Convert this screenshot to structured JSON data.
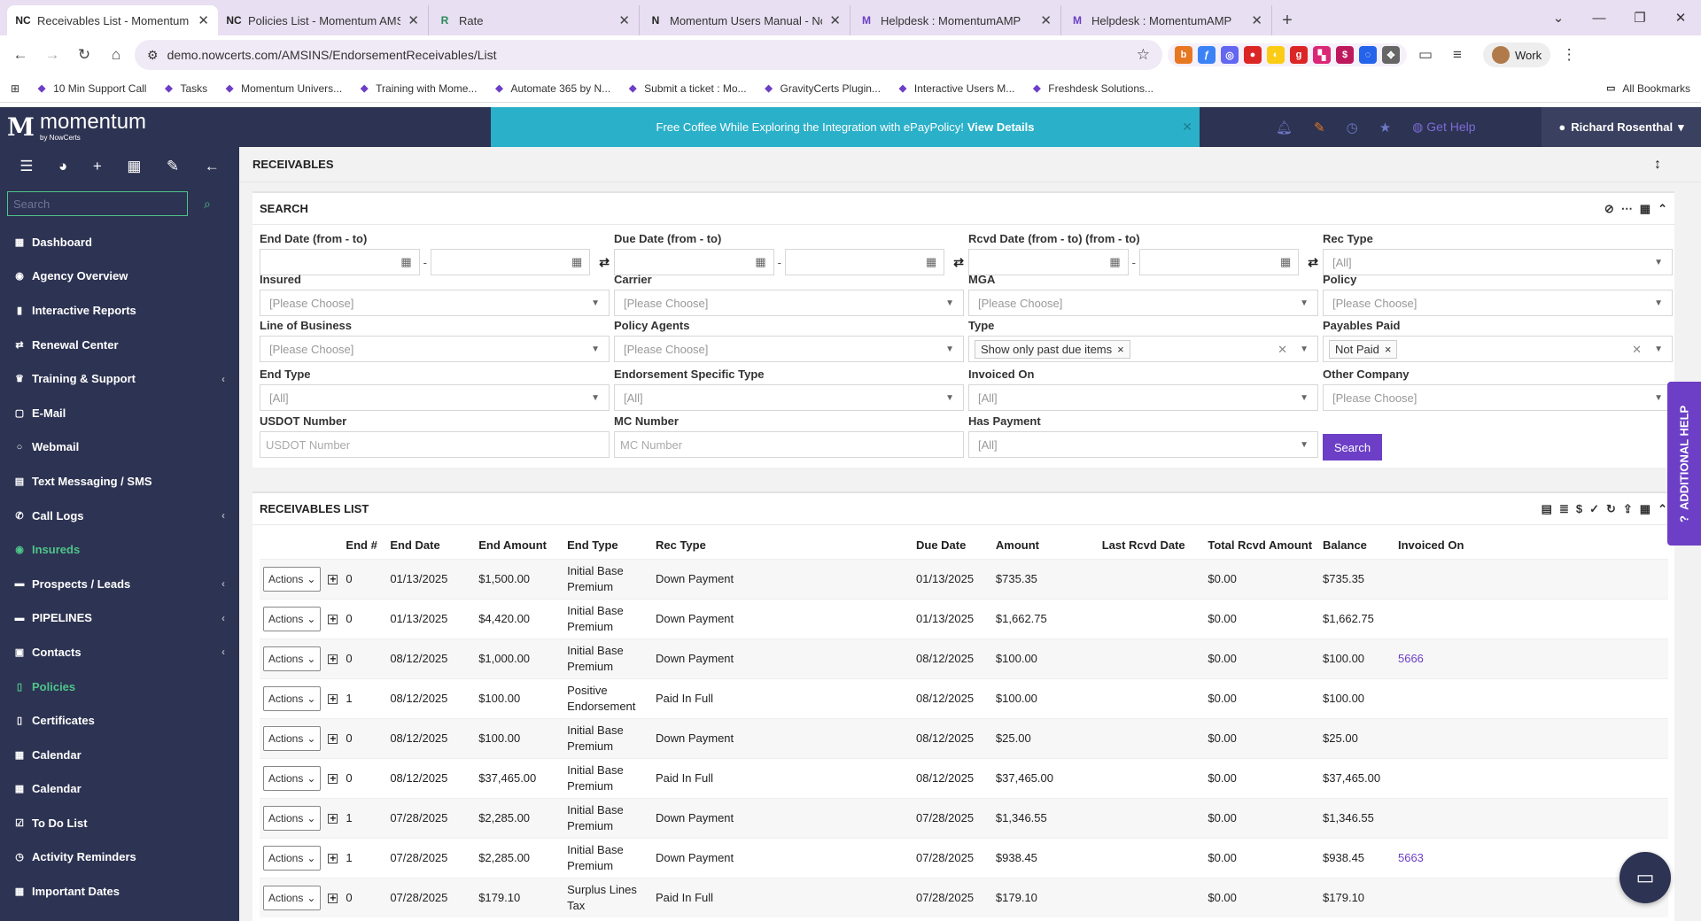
{
  "browser": {
    "tabs": [
      {
        "title": "Receivables List - Momentum AMS",
        "favicon": "NC",
        "active": true
      },
      {
        "title": "Policies List - Momentum AMS",
        "favicon": "NC",
        "active": false
      },
      {
        "title": "Rate",
        "favicon": "R",
        "active": false
      },
      {
        "title": "Momentum Users Manual - Notion",
        "favicon": "N",
        "active": false
      },
      {
        "title": "Helpdesk : MomentumAMP",
        "favicon": "M",
        "active": false
      },
      {
        "title": "Helpdesk : MomentumAMP",
        "favicon": "M",
        "active": false
      }
    ],
    "url": "demo.nowcerts.com/AMSINS/EndorsementReceivables/List",
    "profile_label": "Work",
    "bookmarks": [
      "10 Min Support Call",
      "Tasks",
      "Momentum Univers...",
      "Training with Mome...",
      "Automate 365 by N...",
      "Submit a ticket : Mo...",
      "GravityCerts Plugin...",
      "Interactive Users M...",
      "Freshdesk Solutions..."
    ],
    "all_bookmarks": "All Bookmarks"
  },
  "app": {
    "logo_text": "momentum",
    "logo_sub": "by NowCerts",
    "promo_text": "Free Coffee While Exploring the Integration with ePayPolicy!",
    "promo_link": "View Details",
    "get_help": "Get Help",
    "user_name": "Richard Rosenthal"
  },
  "sidebar": {
    "search_placeholder": "Search",
    "items": [
      {
        "label": "Dashboard",
        "icon": "dashboard-icon",
        "glyph": "▦",
        "chevron": false,
        "green": false
      },
      {
        "label": "Agency Overview",
        "icon": "globe-icon",
        "glyph": "◉",
        "chevron": false,
        "green": false
      },
      {
        "label": "Interactive Reports",
        "icon": "bar-chart-icon",
        "glyph": "▮",
        "chevron": false,
        "green": false
      },
      {
        "label": "Renewal Center",
        "icon": "renew-icon",
        "glyph": "⇄",
        "chevron": false,
        "green": false
      },
      {
        "label": "Training & Support",
        "icon": "trophy-icon",
        "glyph": "♛",
        "chevron": true,
        "green": false
      },
      {
        "label": "E-Mail",
        "icon": "mail-icon",
        "glyph": "▢",
        "chevron": false,
        "green": false
      },
      {
        "label": "Webmail",
        "icon": "circle-icon",
        "glyph": "○",
        "chevron": false,
        "green": false
      },
      {
        "label": "Text Messaging / SMS",
        "icon": "sms-icon",
        "glyph": "▤",
        "chevron": false,
        "green": false
      },
      {
        "label": "Call Logs",
        "icon": "phone-icon",
        "glyph": "✆",
        "chevron": true,
        "green": false
      },
      {
        "label": "Insureds",
        "icon": "eye-icon",
        "glyph": "◉",
        "chevron": false,
        "green": true
      },
      {
        "label": "Prospects / Leads",
        "icon": "folder-icon",
        "glyph": "▬",
        "chevron": true,
        "green": false
      },
      {
        "label": "PIPELINES",
        "icon": "pipeline-icon",
        "glyph": "▬",
        "chevron": true,
        "green": false
      },
      {
        "label": "Contacts",
        "icon": "contacts-icon",
        "glyph": "▣",
        "chevron": true,
        "green": false
      },
      {
        "label": "Policies",
        "icon": "policy-icon",
        "glyph": "▯",
        "chevron": false,
        "green": true
      },
      {
        "label": "Certificates",
        "icon": "certificate-icon",
        "glyph": "▯",
        "chevron": false,
        "green": false
      },
      {
        "label": "Calendar",
        "icon": "calendar-icon",
        "glyph": "▦",
        "chevron": false,
        "green": false
      },
      {
        "label": "Calendar",
        "icon": "calendar-icon",
        "glyph": "▦",
        "chevron": false,
        "green": false
      },
      {
        "label": "To Do List",
        "icon": "todo-icon",
        "glyph": "☑",
        "chevron": false,
        "green": false
      },
      {
        "label": "Activity Reminders",
        "icon": "clock-icon",
        "glyph": "◷",
        "chevron": false,
        "green": false
      },
      {
        "label": "Important Dates",
        "icon": "date-icon",
        "glyph": "▦",
        "chevron": false,
        "green": false
      }
    ]
  },
  "page": {
    "title": "RECEIVABLES",
    "search_title": "SEARCH",
    "list_title": "RECEIVABLES LIST",
    "search_button": "Search",
    "additional_help": "ADDITIONAL HELP"
  },
  "filters": {
    "end_date": "End Date (from - to)",
    "due_date": "Due Date (from - to)",
    "rcvd_date": "Rcvd Date (from - to) (from - to)",
    "rec_type": {
      "label": "Rec Type",
      "value": "[All]"
    },
    "insured": {
      "label": "Insured",
      "value": "[Please Choose]"
    },
    "carrier": {
      "label": "Carrier",
      "value": "[Please Choose]"
    },
    "mga": {
      "label": "MGA",
      "value": "[Please Choose]"
    },
    "policy": {
      "label": "Policy",
      "value": "[Please Choose]"
    },
    "line_of_business": {
      "label": "Line of Business",
      "value": "[Please Choose]"
    },
    "policy_agents": {
      "label": "Policy Agents",
      "value": "[Please Choose]"
    },
    "type": {
      "label": "Type",
      "chip": "Show only past due items"
    },
    "payables_paid": {
      "label": "Payables Paid",
      "chip": "Not Paid"
    },
    "end_type": {
      "label": "End Type",
      "value": "[All]"
    },
    "endorsement_specific_type": {
      "label": "Endorsement Specific Type",
      "value": "[All]"
    },
    "invoiced_on": {
      "label": "Invoiced On",
      "value": "[All]"
    },
    "other_company": {
      "label": "Other Company",
      "value": "[Please Choose]"
    },
    "usdot": {
      "label": "USDOT Number",
      "placeholder": "USDOT Number"
    },
    "mc": {
      "label": "MC Number",
      "placeholder": "MC Number"
    },
    "has_payment": {
      "label": "Has Payment",
      "value": "[All]"
    }
  },
  "table": {
    "columns": [
      "",
      "",
      "End #",
      "End Date",
      "End Amount",
      "End Type",
      "Rec Type",
      "Due Date",
      "Amount",
      "Last Rcvd Date",
      "Total Rcvd Amount",
      "Balance",
      "Invoiced On"
    ],
    "action_label": "Actions",
    "rows": [
      {
        "end_no": "0",
        "end_date": "01/13/2025",
        "end_amount": "$1,500.00",
        "end_type": "Initial Base Premium",
        "rec_type": "Down Payment",
        "due_date": "01/13/2025",
        "amount": "$735.35",
        "last_rcvd": "",
        "total_rcvd": "$0.00",
        "balance": "$735.35",
        "invoiced": ""
      },
      {
        "end_no": "0",
        "end_date": "01/13/2025",
        "end_amount": "$4,420.00",
        "end_type": "Initial Base Premium",
        "rec_type": "Down Payment",
        "due_date": "01/13/2025",
        "amount": "$1,662.75",
        "last_rcvd": "",
        "total_rcvd": "$0.00",
        "balance": "$1,662.75",
        "invoiced": ""
      },
      {
        "end_no": "0",
        "end_date": "08/12/2025",
        "end_amount": "$1,000.00",
        "end_type": "Initial Base Premium",
        "rec_type": "Down Payment",
        "due_date": "08/12/2025",
        "amount": "$100.00",
        "last_rcvd": "",
        "total_rcvd": "$0.00",
        "balance": "$100.00",
        "invoiced": "5666"
      },
      {
        "end_no": "1",
        "end_date": "08/12/2025",
        "end_amount": "$100.00",
        "end_type": "Positive Endorsement",
        "rec_type": "Paid In Full",
        "due_date": "08/12/2025",
        "amount": "$100.00",
        "last_rcvd": "",
        "total_rcvd": "$0.00",
        "balance": "$100.00",
        "invoiced": ""
      },
      {
        "end_no": "0",
        "end_date": "08/12/2025",
        "end_amount": "$100.00",
        "end_type": "Initial Base Premium",
        "rec_type": "Down Payment",
        "due_date": "08/12/2025",
        "amount": "$25.00",
        "last_rcvd": "",
        "total_rcvd": "$0.00",
        "balance": "$25.00",
        "invoiced": ""
      },
      {
        "end_no": "0",
        "end_date": "08/12/2025",
        "end_amount": "$37,465.00",
        "end_type": "Initial Base Premium",
        "rec_type": "Paid In Full",
        "due_date": "08/12/2025",
        "amount": "$37,465.00",
        "last_rcvd": "",
        "total_rcvd": "$0.00",
        "balance": "$37,465.00",
        "invoiced": ""
      },
      {
        "end_no": "1",
        "end_date": "07/28/2025",
        "end_amount": "$2,285.00",
        "end_type": "Initial Base Premium",
        "rec_type": "Down Payment",
        "due_date": "07/28/2025",
        "amount": "$1,346.55",
        "last_rcvd": "",
        "total_rcvd": "$0.00",
        "balance": "$1,346.55",
        "invoiced": ""
      },
      {
        "end_no": "1",
        "end_date": "07/28/2025",
        "end_amount": "$2,285.00",
        "end_type": "Initial Base Premium",
        "rec_type": "Down Payment",
        "due_date": "07/28/2025",
        "amount": "$938.45",
        "last_rcvd": "",
        "total_rcvd": "$0.00",
        "balance": "$938.45",
        "invoiced": "5663"
      },
      {
        "end_no": "0",
        "end_date": "07/28/2025",
        "end_amount": "$179.10",
        "end_type": "Surplus Lines Tax",
        "rec_type": "Paid In Full",
        "due_date": "07/28/2025",
        "amount": "$179.10",
        "last_rcvd": "",
        "total_rcvd": "$0.00",
        "balance": "$179.10",
        "invoiced": ""
      }
    ]
  }
}
